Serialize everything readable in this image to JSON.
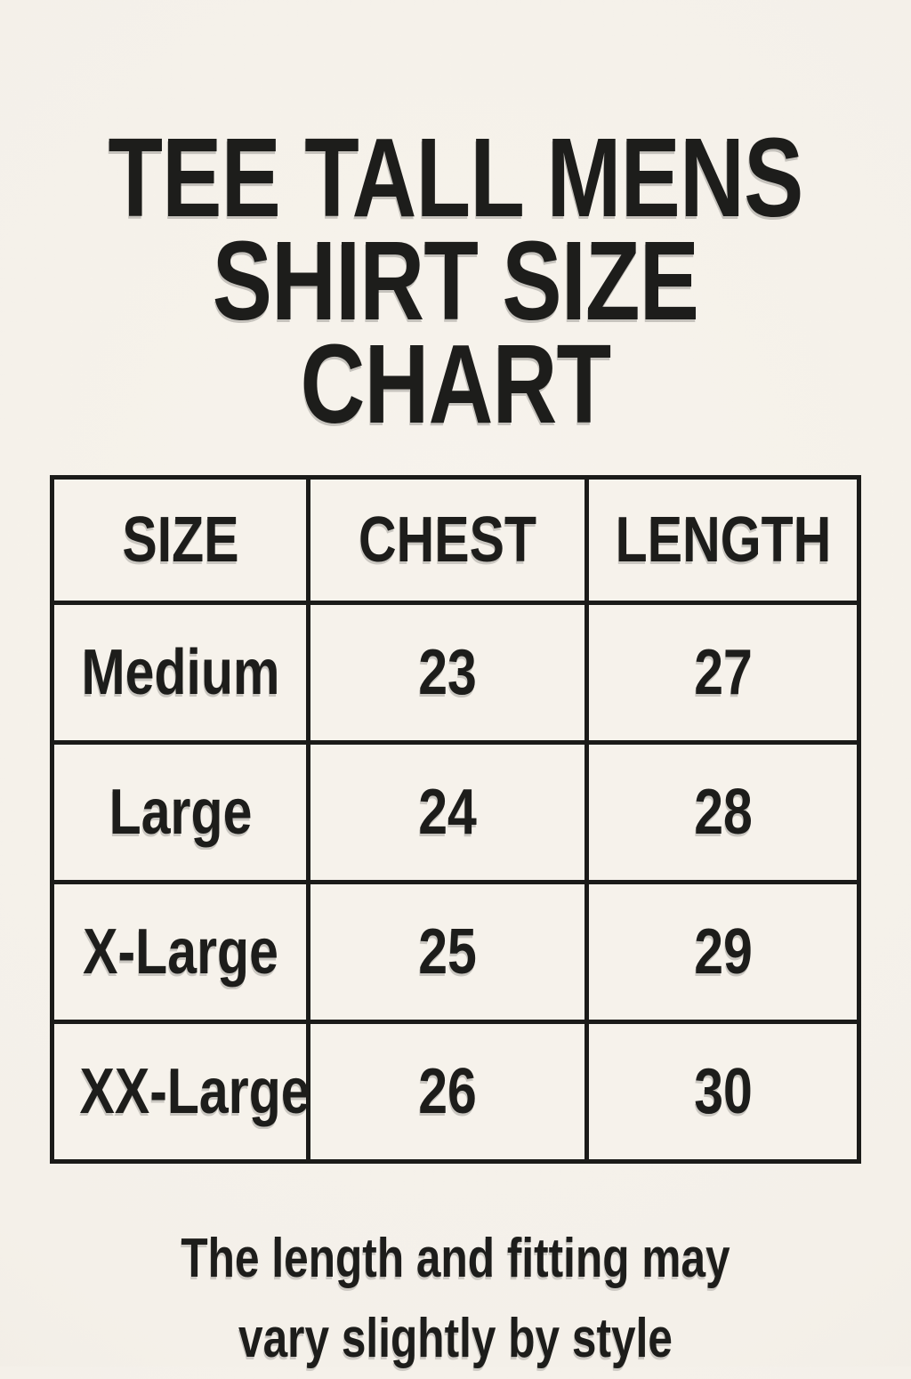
{
  "page": {
    "title_line1": "TEE TALL MENS",
    "title_line2": "SHIRT SIZE CHART",
    "note_line1": "The length and fitting may",
    "note_line2": "vary slightly by style"
  },
  "table": {
    "headers": [
      "SIZE",
      "CHEST",
      "LENGTH"
    ],
    "rows": [
      [
        "Medium",
        "23",
        "27"
      ],
      [
        "Large",
        "24",
        "28"
      ],
      [
        "X-Large",
        "25",
        "29"
      ],
      [
        "XX-Large",
        "26",
        "30"
      ]
    ]
  },
  "colors": {
    "background": "#F4F0E9",
    "cell_background": "#F6F2EB",
    "text": "#1D1D1B",
    "border": "#1B1B19"
  },
  "chart_data": {
    "type": "table",
    "title": "TEE TALL MENS SHIRT SIZE CHART",
    "columns": [
      "SIZE",
      "CHEST",
      "LENGTH"
    ],
    "rows": [
      {
        "size": "Medium",
        "chest": 23,
        "length": 27
      },
      {
        "size": "Large",
        "chest": 24,
        "length": 28
      },
      {
        "size": "X-Large",
        "chest": 25,
        "length": 29
      },
      {
        "size": "XX-Large",
        "chest": 26,
        "length": 30
      }
    ],
    "footnote": "The length and fitting may vary slightly by style"
  }
}
